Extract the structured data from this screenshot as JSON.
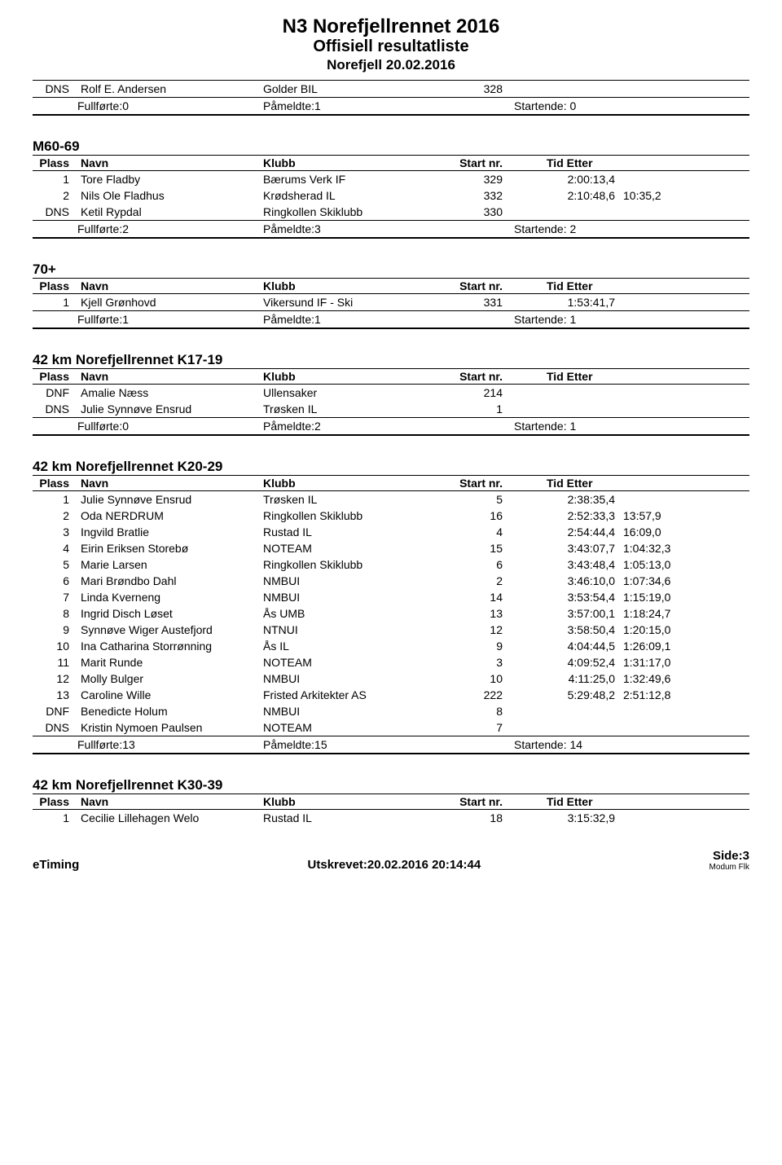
{
  "header": {
    "title": "N3 Norefjellrennet 2016",
    "subtitle": "Offisiell resultatliste",
    "location_date": "Norefjell 20.02.2016"
  },
  "columns": {
    "plass": "Plass",
    "navn": "Navn",
    "klubb": "Klubb",
    "startnr": "Start nr.",
    "tid_etter": "Tid  Etter"
  },
  "summary_labels": {
    "fullforte": "Fullførte:",
    "pameldte": "Påmeldte:",
    "startende": "Startende:"
  },
  "top_section": {
    "rows": [
      {
        "plass": "DNS",
        "navn": "Rolf E. Andersen",
        "klubb": "Golder BIL",
        "startnr": "328",
        "tid": "",
        "etter": ""
      }
    ],
    "summary": {
      "fullforte": "0",
      "pameldte": "1",
      "startende": "0"
    }
  },
  "sections": [
    {
      "title": "M60-69",
      "rows": [
        {
          "plass": "1",
          "navn": "Tore Fladby",
          "klubb": "Bærums Verk IF",
          "startnr": "329",
          "tid": "2:00:13,4",
          "etter": ""
        },
        {
          "plass": "2",
          "navn": "Nils Ole Fladhus",
          "klubb": "Krødsherad IL",
          "startnr": "332",
          "tid": "2:10:48,6",
          "etter": "10:35,2"
        },
        {
          "plass": "DNS",
          "navn": "Ketil Rypdal",
          "klubb": "Ringkollen Skiklubb",
          "startnr": "330",
          "tid": "",
          "etter": ""
        }
      ],
      "summary": {
        "fullforte": "2",
        "pameldte": "3",
        "startende": "2"
      }
    },
    {
      "title": "70+",
      "rows": [
        {
          "plass": "1",
          "navn": "Kjell Grønhovd",
          "klubb": "Vikersund IF - Ski",
          "startnr": "331",
          "tid": "1:53:41,7",
          "etter": ""
        }
      ],
      "summary": {
        "fullforte": "1",
        "pameldte": "1",
        "startende": "1"
      }
    },
    {
      "title": "42 km Norefjellrennet K17-19",
      "rows": [
        {
          "plass": "DNF",
          "navn": "Amalie Næss",
          "klubb": "Ullensaker",
          "startnr": "214",
          "tid": "",
          "etter": ""
        },
        {
          "plass": "DNS",
          "navn": "Julie Synnøve Ensrud",
          "klubb": "Trøsken IL",
          "startnr": "1",
          "tid": "",
          "etter": ""
        }
      ],
      "summary": {
        "fullforte": "0",
        "pameldte": "2",
        "startende": "1"
      }
    },
    {
      "title": "42 km Norefjellrennet K20-29",
      "rows": [
        {
          "plass": "1",
          "navn": "Julie Synnøve Ensrud",
          "klubb": "Trøsken IL",
          "startnr": "5",
          "tid": "2:38:35,4",
          "etter": ""
        },
        {
          "plass": "2",
          "navn": "Oda NERDRUM",
          "klubb": "Ringkollen Skiklubb",
          "startnr": "16",
          "tid": "2:52:33,3",
          "etter": "13:57,9"
        },
        {
          "plass": "3",
          "navn": "Ingvild Bratlie",
          "klubb": "Rustad IL",
          "startnr": "4",
          "tid": "2:54:44,4",
          "etter": "16:09,0"
        },
        {
          "plass": "4",
          "navn": "Eirin Eriksen Storebø",
          "klubb": "NOTEAM",
          "startnr": "15",
          "tid": "3:43:07,7",
          "etter": "1:04:32,3"
        },
        {
          "plass": "5",
          "navn": "Marie Larsen",
          "klubb": "Ringkollen Skiklubb",
          "startnr": "6",
          "tid": "3:43:48,4",
          "etter": "1:05:13,0"
        },
        {
          "plass": "6",
          "navn": "Mari Brøndbo Dahl",
          "klubb": "NMBUI",
          "startnr": "2",
          "tid": "3:46:10,0",
          "etter": "1:07:34,6"
        },
        {
          "plass": "7",
          "navn": "Linda Kverneng",
          "klubb": "NMBUI",
          "startnr": "14",
          "tid": "3:53:54,4",
          "etter": "1:15:19,0"
        },
        {
          "plass": "8",
          "navn": "Ingrid Disch Løset",
          "klubb": "Ås UMB",
          "startnr": "13",
          "tid": "3:57:00,1",
          "etter": "1:18:24,7"
        },
        {
          "plass": "9",
          "navn": "Synnøve Wiger Austefjord",
          "klubb": "NTNUI",
          "startnr": "12",
          "tid": "3:58:50,4",
          "etter": "1:20:15,0"
        },
        {
          "plass": "10",
          "navn": "Ina Catharina Storrønning",
          "klubb": "Ås IL",
          "startnr": "9",
          "tid": "4:04:44,5",
          "etter": "1:26:09,1"
        },
        {
          "plass": "11",
          "navn": "Marit Runde",
          "klubb": "NOTEAM",
          "startnr": "3",
          "tid": "4:09:52,4",
          "etter": "1:31:17,0"
        },
        {
          "plass": "12",
          "navn": "Molly Bulger",
          "klubb": "NMBUI",
          "startnr": "10",
          "tid": "4:11:25,0",
          "etter": "1:32:49,6"
        },
        {
          "plass": "13",
          "navn": "Caroline Wille",
          "klubb": "Fristed Arkitekter AS",
          "startnr": "222",
          "tid": "5:29:48,2",
          "etter": "2:51:12,8"
        },
        {
          "plass": "DNF",
          "navn": "Benedicte Holum",
          "klubb": "NMBUI",
          "startnr": "8",
          "tid": "",
          "etter": ""
        },
        {
          "plass": "DNS",
          "navn": "Kristin Nymoen Paulsen",
          "klubb": "NOTEAM",
          "startnr": "7",
          "tid": "",
          "etter": ""
        }
      ],
      "summary": {
        "fullforte": "13",
        "pameldte": "15",
        "startende": "14"
      }
    },
    {
      "title": "42 km Norefjellrennet K30-39",
      "rows": [
        {
          "plass": "1",
          "navn": "Cecilie Lillehagen Welo",
          "klubb": "Rustad IL",
          "startnr": "18",
          "tid": "3:15:32,9",
          "etter": ""
        }
      ],
      "summary": null
    }
  ],
  "footer": {
    "left": "eTiming",
    "center_label": "Utskrevet:",
    "center_value": "20.02.2016 20:14:44",
    "right_label": "Side:",
    "right_value": "3",
    "small": "Modum Flk"
  }
}
